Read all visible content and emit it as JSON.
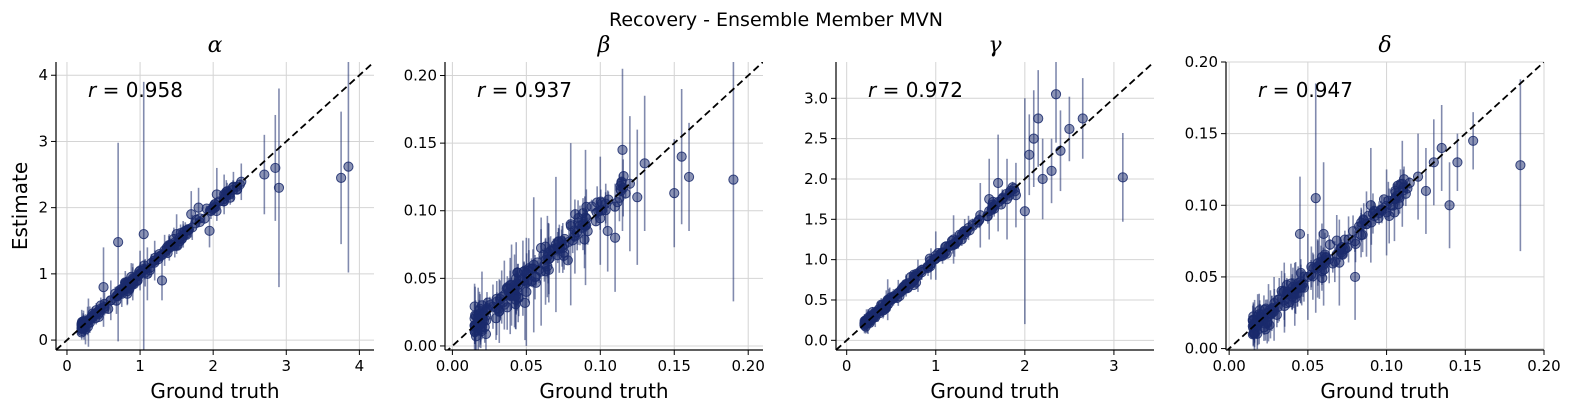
{
  "figure": {
    "title": "Recovery - Ensemble Member MVN"
  },
  "colors": {
    "points": "#1a2a6c",
    "diagonal": "#000000",
    "grid": "#d4d4d4"
  },
  "chart_data": [
    {
      "type": "scatter",
      "title": "α",
      "xlabel": "Ground truth",
      "ylabel": "Estimate",
      "xlim": [
        -0.15,
        4.2
      ],
      "ylim": [
        -0.15,
        4.2
      ],
      "xticks": [
        "0",
        "1",
        "2",
        "3",
        "4"
      ],
      "xtick_values": [
        0,
        1,
        2,
        3,
        4
      ],
      "yticks": [
        "0",
        "1",
        "2",
        "3",
        "4"
      ],
      "ytick_values": [
        0,
        1,
        2,
        3,
        4
      ],
      "grid": true,
      "annotation": {
        "symbol": "r",
        "text": " = 0.958"
      },
      "errorbar_scale": 0.12,
      "points": [
        [
          0.2,
          0.22,
          0.05
        ],
        [
          0.35,
          0.4,
          0.1
        ],
        [
          0.4,
          0.45,
          0.08
        ],
        [
          0.5,
          0.8,
          0.6
        ],
        [
          0.6,
          0.6,
          0.3
        ],
        [
          0.7,
          1.48,
          1.5
        ],
        [
          0.75,
          0.7,
          0.2
        ],
        [
          0.9,
          0.85,
          0.25
        ],
        [
          1.0,
          1.05,
          0.3
        ],
        [
          1.05,
          1.6,
          2.3
        ],
        [
          1.1,
          1.0,
          0.4
        ],
        [
          1.2,
          1.2,
          0.3
        ],
        [
          1.3,
          0.9,
          0.3
        ],
        [
          1.4,
          1.4,
          0.2
        ],
        [
          1.5,
          1.6,
          0.3
        ],
        [
          1.7,
          1.9,
          0.35
        ],
        [
          1.8,
          2.0,
          0.3
        ],
        [
          1.95,
          1.65,
          0.25
        ],
        [
          2.05,
          2.2,
          0.4
        ],
        [
          2.15,
          2.2,
          0.3
        ],
        [
          2.7,
          2.5,
          0.6
        ],
        [
          2.85,
          2.6,
          0.8
        ],
        [
          2.9,
          2.3,
          1.5
        ],
        [
          3.75,
          2.45,
          1.0
        ],
        [
          3.85,
          2.62,
          1.6
        ]
      ]
    },
    {
      "type": "scatter",
      "title": "β",
      "xlabel": "Ground truth",
      "ylabel": "",
      "xlim": [
        -0.005,
        0.21
      ],
      "ylim": [
        -0.003,
        0.21
      ],
      "xticks": [
        "0.00",
        "0.05",
        "0.10",
        "0.15",
        "0.20"
      ],
      "xtick_values": [
        0,
        0.05,
        0.1,
        0.15,
        0.2
      ],
      "yticks": [
        "0.00",
        "0.05",
        "0.10",
        "0.15",
        "0.20"
      ],
      "ytick_values": [
        0,
        0.05,
        0.1,
        0.15,
        0.2
      ],
      "grid": true,
      "annotation": {
        "symbol": "r",
        "text": " = 0.937"
      },
      "errorbar_scale": 0.015,
      "points": [
        [
          0.015,
          0.015,
          0.01
        ],
        [
          0.02,
          0.03,
          0.025
        ],
        [
          0.03,
          0.028,
          0.02
        ],
        [
          0.04,
          0.045,
          0.03
        ],
        [
          0.05,
          0.04,
          0.04
        ],
        [
          0.055,
          0.06,
          0.05
        ],
        [
          0.06,
          0.055,
          0.04
        ],
        [
          0.07,
          0.075,
          0.05
        ],
        [
          0.08,
          0.09,
          0.06
        ],
        [
          0.09,
          0.095,
          0.05
        ],
        [
          0.1,
          0.1,
          0.04
        ],
        [
          0.105,
          0.085,
          0.03
        ],
        [
          0.11,
          0.08,
          0.04
        ],
        [
          0.115,
          0.145,
          0.06
        ],
        [
          0.12,
          0.12,
          0.05
        ],
        [
          0.125,
          0.11,
          0.05
        ],
        [
          0.13,
          0.135,
          0.05
        ],
        [
          0.15,
          0.113,
          0.04
        ],
        [
          0.155,
          0.14,
          0.05
        ],
        [
          0.16,
          0.125,
          0.04
        ],
        [
          0.19,
          0.123,
          0.09
        ]
      ]
    },
    {
      "type": "scatter",
      "title": "γ",
      "xlabel": "Ground truth",
      "ylabel": "",
      "xlim": [
        -0.12,
        3.45
      ],
      "ylim": [
        -0.12,
        3.45
      ],
      "xticks": [
        "0",
        "1",
        "2",
        "3"
      ],
      "xtick_values": [
        0,
        1,
        2,
        3
      ],
      "yticks": [
        "0.0",
        "0.5",
        "1.0",
        "1.5",
        "2.0",
        "2.5",
        "3.0"
      ],
      "ytick_values": [
        0,
        0.5,
        1,
        1.5,
        2,
        2.5,
        3
      ],
      "grid": true,
      "annotation": {
        "symbol": "r",
        "text": " = 0.972"
      },
      "errorbar_scale": 0.08,
      "points": [
        [
          0.2,
          0.2,
          0.05
        ],
        [
          0.5,
          0.5,
          0.1
        ],
        [
          0.8,
          0.8,
          0.2
        ],
        [
          1.0,
          1.05,
          0.3
        ],
        [
          1.2,
          1.25,
          0.3
        ],
        [
          1.5,
          1.55,
          0.4
        ],
        [
          1.6,
          1.75,
          0.5
        ],
        [
          1.7,
          1.95,
          0.6
        ],
        [
          1.8,
          1.75,
          0.5
        ],
        [
          1.9,
          1.8,
          0.4
        ],
        [
          2.0,
          1.6,
          1.4
        ],
        [
          2.05,
          2.3,
          0.5
        ],
        [
          2.1,
          2.5,
          0.6
        ],
        [
          2.15,
          2.75,
          0.6
        ],
        [
          2.2,
          2.0,
          0.5
        ],
        [
          2.3,
          2.1,
          0.4
        ],
        [
          2.35,
          3.05,
          0.6
        ],
        [
          2.4,
          2.35,
          0.5
        ],
        [
          2.5,
          2.62,
          0.4
        ],
        [
          2.65,
          2.75,
          0.5
        ],
        [
          3.1,
          2.02,
          0.55
        ]
      ]
    },
    {
      "type": "scatter",
      "title": "δ",
      "xlabel": "Ground truth",
      "ylabel": "",
      "xlim": [
        -0.002,
        0.2
      ],
      "ylim": [
        -0.001,
        0.2
      ],
      "xticks": [
        "0.00",
        "0.05",
        "0.10",
        "0.15",
        "0.20"
      ],
      "xtick_values": [
        0,
        0.05,
        0.1,
        0.15,
        0.2
      ],
      "yticks": [
        "0.00",
        "0.05",
        "0.10",
        "0.15",
        "0.20"
      ],
      "ytick_values": [
        0,
        0.05,
        0.1,
        0.15,
        0.2
      ],
      "grid": true,
      "annotation": {
        "symbol": "r",
        "text": " = 0.947"
      },
      "errorbar_scale": 0.012,
      "points": [
        [
          0.015,
          0.02,
          0.01
        ],
        [
          0.025,
          0.025,
          0.02
        ],
        [
          0.035,
          0.04,
          0.02
        ],
        [
          0.045,
          0.08,
          0.04
        ],
        [
          0.05,
          0.05,
          0.03
        ],
        [
          0.055,
          0.105,
          0.08
        ],
        [
          0.06,
          0.08,
          0.05
        ],
        [
          0.07,
          0.06,
          0.03
        ],
        [
          0.08,
          0.05,
          0.03
        ],
        [
          0.09,
          0.1,
          0.04
        ],
        [
          0.1,
          0.095,
          0.03
        ],
        [
          0.105,
          0.095,
          0.02
        ],
        [
          0.11,
          0.115,
          0.03
        ],
        [
          0.12,
          0.12,
          0.03
        ],
        [
          0.125,
          0.11,
          0.03
        ],
        [
          0.13,
          0.13,
          0.03
        ],
        [
          0.135,
          0.14,
          0.03
        ],
        [
          0.14,
          0.1,
          0.03
        ],
        [
          0.145,
          0.13,
          0.02
        ],
        [
          0.155,
          0.145,
          0.02
        ],
        [
          0.185,
          0.128,
          0.06
        ]
      ]
    }
  ]
}
